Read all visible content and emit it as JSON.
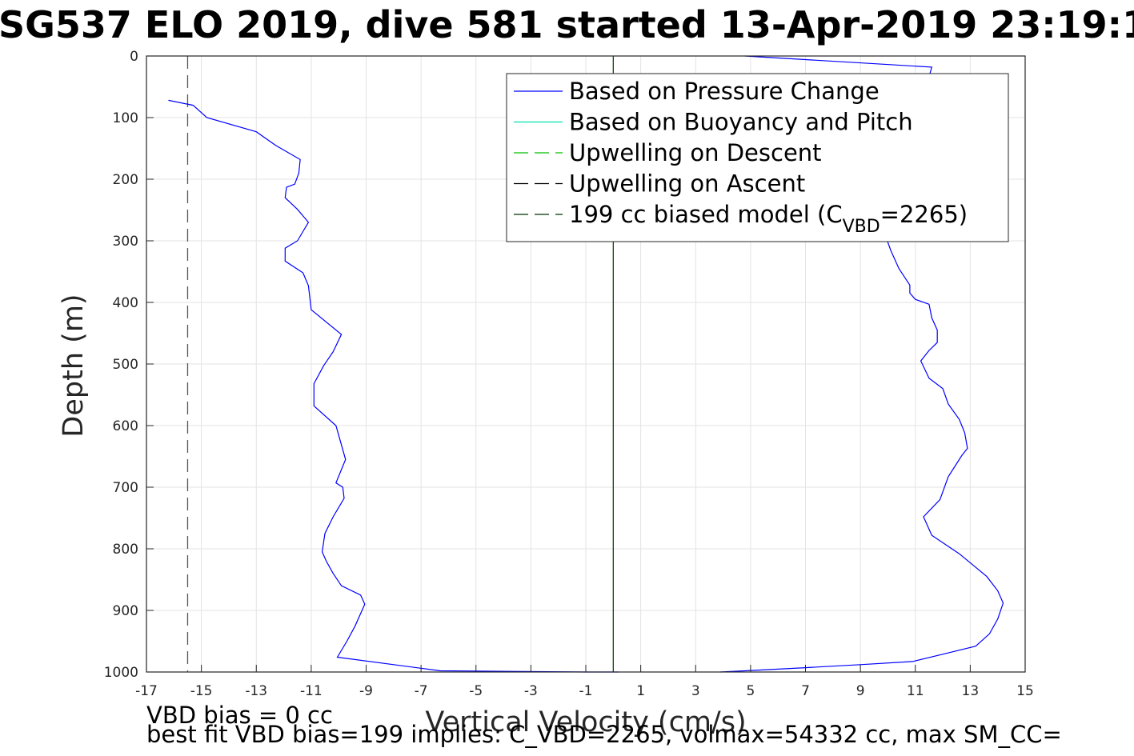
{
  "title": "SG537 ELO 2019, dive 581 started 13-Apr-2019 23:19:1",
  "footer": {
    "line1": "VBD bias = 0 cc",
    "line2": "best fit VBD bias=199 implies: C_VBD=2265, volmax=54332 cc, max SM_CC="
  },
  "legend": {
    "items": [
      {
        "label": "Based on Pressure Change",
        "color": "#0000ff",
        "dash": "solid"
      },
      {
        "label": "Based on Buoyancy and Pitch",
        "color": "#00e0b0",
        "dash": "solid"
      },
      {
        "label": "Upwelling on Descent",
        "color": "#00c000",
        "dash": "dashed"
      },
      {
        "label": "Upwelling on Ascent",
        "color": "#000000",
        "dash": "dashed"
      },
      {
        "label": "199 cc biased model (C",
        "sub": "VBD",
        "suffix": "=2265)",
        "color": "#003300",
        "dash": "dashed"
      }
    ]
  },
  "chart_data": {
    "type": "line",
    "title": "SG537 ELO 2019, dive 581 started 13-Apr-2019 23:19:1",
    "xlabel": "Vertical Velocity (cm/s)",
    "ylabel": "Depth (m)",
    "xlim": [
      -17,
      15
    ],
    "ylim": [
      0,
      1000
    ],
    "y_reversed": true,
    "grid": true,
    "legend_position": "top-right",
    "xticks": [
      -17,
      -15,
      -13,
      -11,
      -9,
      -7,
      -5,
      -3,
      -1,
      1,
      3,
      5,
      7,
      9,
      11,
      13,
      15
    ],
    "yticks": [
      0,
      100,
      200,
      300,
      400,
      500,
      600,
      700,
      800,
      900,
      1000
    ],
    "series": [
      {
        "name": "Based on Pressure Change",
        "color": "#0000ff",
        "segments": [
          {
            "part": "descent",
            "x": [
              -16.2,
              -15.3,
              -14.8,
              -13.0,
              -12.3,
              -11.4,
              -11.45,
              -11.6,
              -11.9,
              -11.95,
              -11.5,
              -11.1,
              -11.5,
              -11.95,
              -11.95,
              -11.3,
              -11.1,
              -11.0,
              -9.9,
              -10.2,
              -10.55,
              -10.9,
              -10.9,
              -10.1,
              -9.75,
              -10.1,
              -9.85,
              -9.8,
              -10.2,
              -10.5,
              -10.6,
              -10.45,
              -10.2,
              -9.9,
              -9.2,
              -9.05,
              -9.4,
              -9.7,
              -10.05,
              -6.3,
              -1.0,
              0.2
            ],
            "y": [
              72,
              80,
              100,
              123,
              145,
              168,
              190,
              208,
              213,
              230,
              249,
              270,
              300,
              312,
              333,
              352,
              373,
              412,
              452,
              480,
              503,
              532,
              568,
              600,
              655,
              693,
              700,
              718,
              748,
              775,
              805,
              820,
              840,
              860,
              875,
              890,
              925,
              950,
              976,
              998,
              1000,
              1000
            ]
          },
          {
            "part": "ascent",
            "x": [
              3.9,
              4.8,
              7.0,
              9.0,
              10.9,
              12.1,
              13.2,
              13.7,
              14.0,
              14.2,
              14.0,
              13.6,
              12.6,
              11.6,
              11.3,
              11.9,
              12.2,
              12.7,
              12.9,
              12.8,
              12.6,
              12.2,
              12.0,
              11.5,
              11.2,
              11.5,
              11.8,
              11.8,
              11.6,
              11.5,
              11.0,
              10.8,
              10.8,
              10.4,
              10.1,
              9.9,
              9.8,
              10.4,
              11.6,
              4.8
            ],
            "y": [
              1000,
              998,
              993,
              988,
              983,
              970,
              958,
              938,
              914,
              888,
              868,
              845,
              808,
              778,
              748,
              720,
              683,
              648,
              637,
              612,
              590,
              565,
              540,
              523,
              495,
              478,
              465,
              445,
              425,
              403,
              395,
              385,
              372,
              345,
              315,
              290,
              265,
              205,
              18,
              0
            ]
          }
        ]
      },
      {
        "name": "Based on Buoyancy and Pitch",
        "color": "#00e0b0",
        "segments": []
      },
      {
        "name": "Upwelling on Descent",
        "color": "#00c000",
        "segments": []
      },
      {
        "name": "Upwelling on Ascent",
        "color": "#000000",
        "segments": []
      },
      {
        "name": "199 cc biased model (CVBD=2265)",
        "color": "#003300",
        "segments": [
          {
            "part": "vertical",
            "x": [
              0.0,
              0.0
            ],
            "y": [
              0,
              1000
            ]
          }
        ]
      }
    ],
    "reference_lines": [
      {
        "orientation": "vertical",
        "x": -15.5,
        "color": "#555555",
        "dash": "dashed"
      }
    ]
  }
}
